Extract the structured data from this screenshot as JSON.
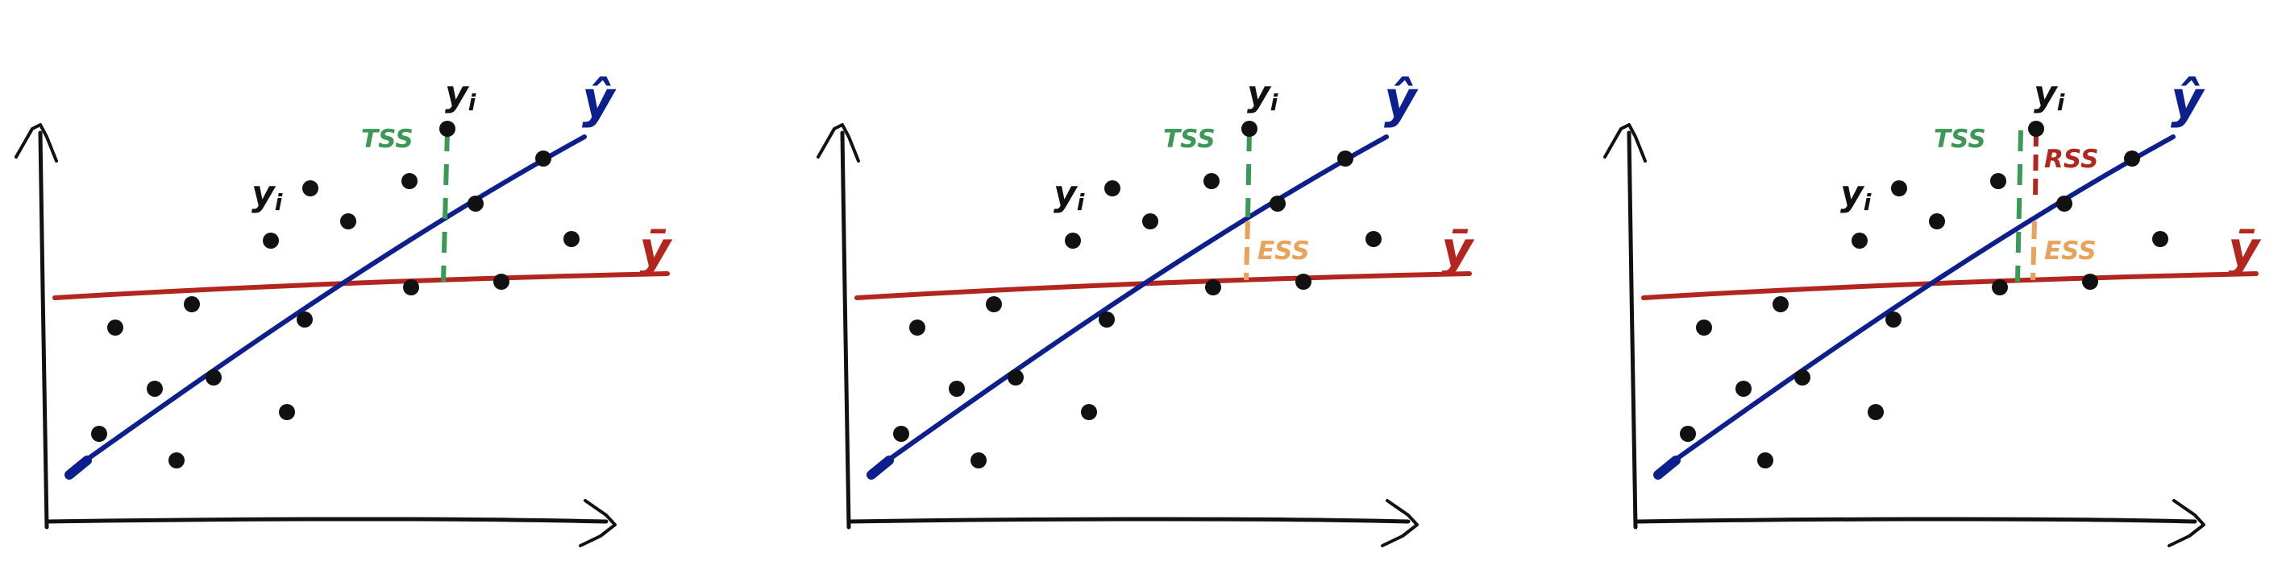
{
  "colors": {
    "ink": "#111111",
    "fit": "#0c1f8c",
    "mean": "#b3261e",
    "tss": "#3a9a55",
    "ess": "#e8a259",
    "rss": "#b3261e"
  },
  "labels": {
    "yi": "y",
    "yi_sub": "i",
    "yhat": "ŷ",
    "ybar": "ȳ",
    "tss": "TSS",
    "ess": "ESS",
    "rss": "RSS"
  },
  "panels": [
    {
      "segments": [
        "tss"
      ]
    },
    {
      "segments": [
        "tss",
        "ess"
      ]
    },
    {
      "segments": [
        "tss",
        "ess",
        "rss"
      ]
    }
  ]
}
